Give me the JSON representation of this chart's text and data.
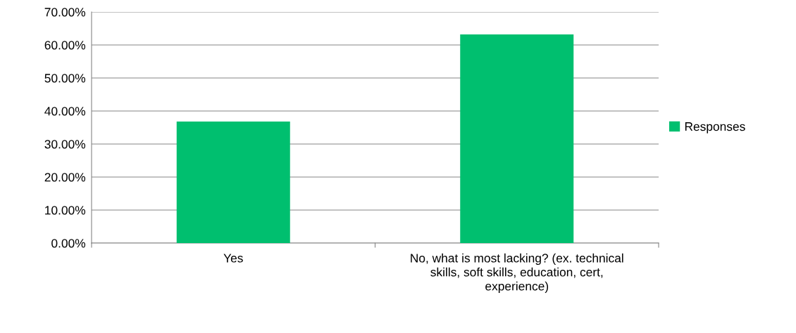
{
  "chart_data": {
    "type": "bar",
    "categories": [
      "Yes",
      "No, what is most lacking? (ex. technical skills, soft skills, education, cert, experience)"
    ],
    "series": [
      {
        "name": "Responses",
        "color": "#00bf6f",
        "values": [
          36.8,
          63.2
        ]
      }
    ],
    "ylim": [
      0,
      70
    ],
    "yticks": [
      {
        "value": 0,
        "label": "0.00%"
      },
      {
        "value": 10,
        "label": "10.00%"
      },
      {
        "value": 20,
        "label": "20.00%"
      },
      {
        "value": 30,
        "label": "30.00%"
      },
      {
        "value": 40,
        "label": "40.00%"
      },
      {
        "value": 50,
        "label": "50.00%"
      },
      {
        "value": 60,
        "label": "60.00%"
      },
      {
        "value": 70,
        "label": "70.00%"
      }
    ],
    "grid": "y",
    "legend": "right"
  }
}
